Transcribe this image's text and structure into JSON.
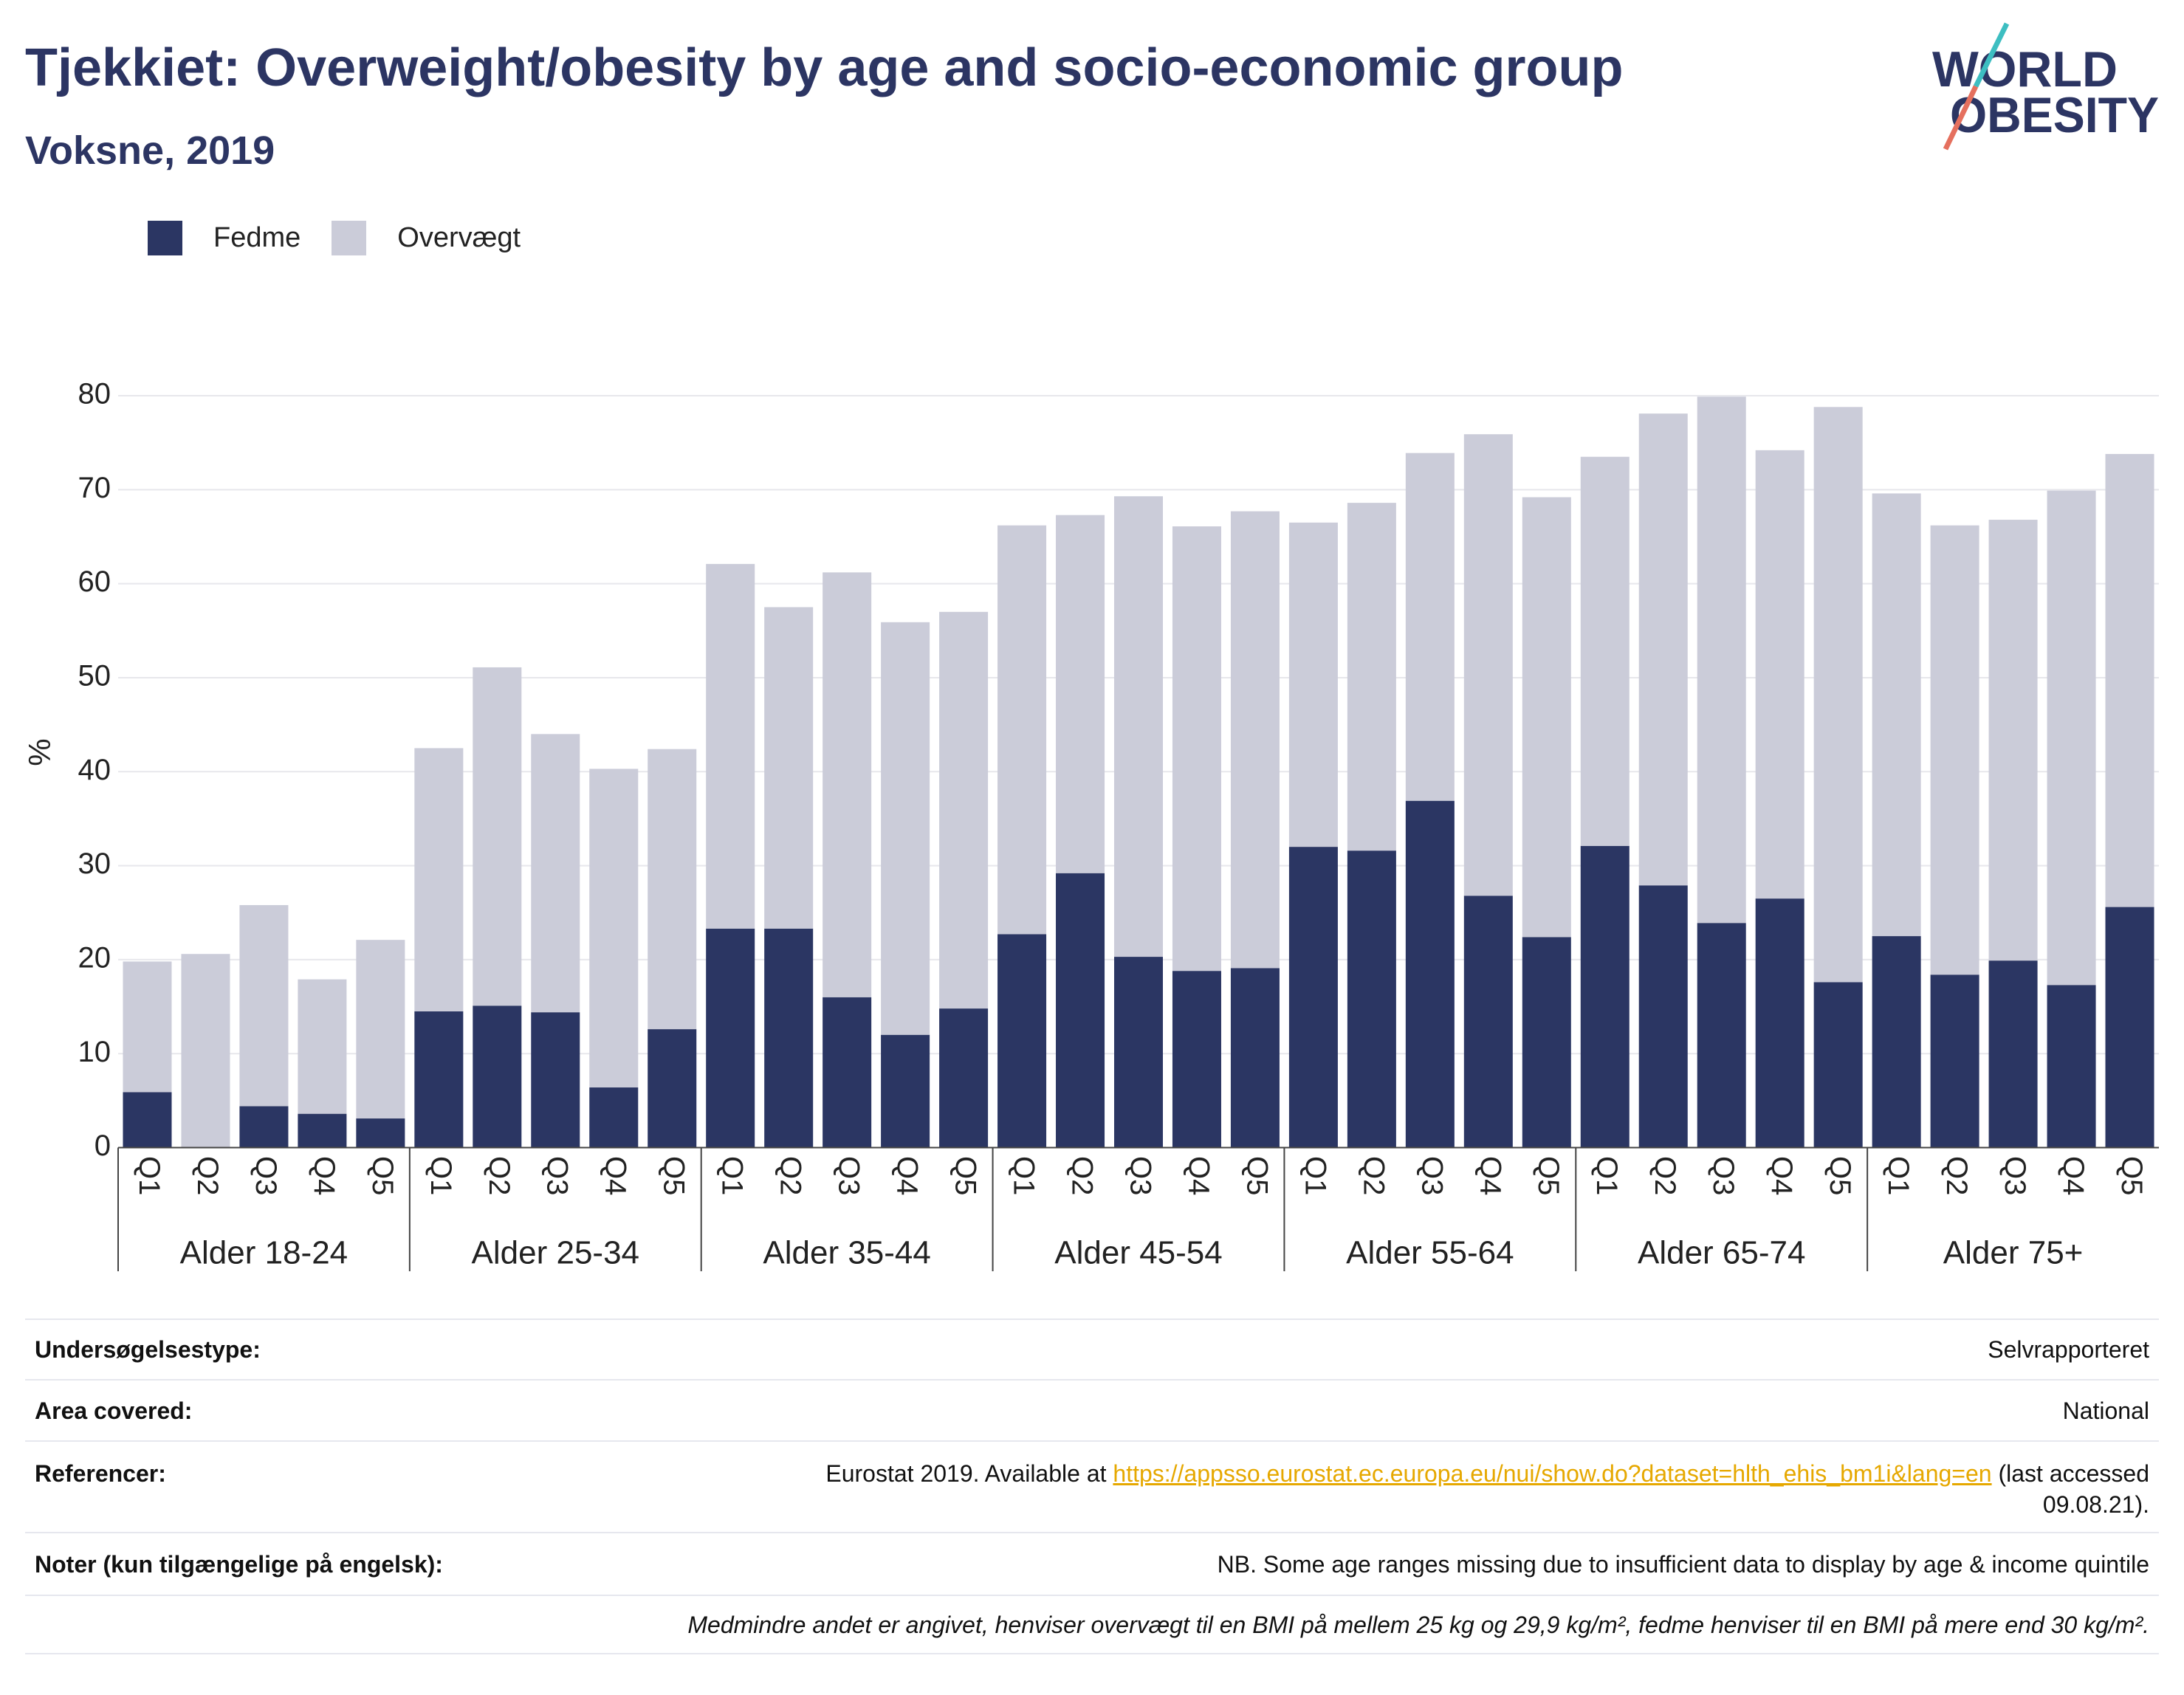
{
  "chart_data": {
    "type": "bar",
    "stacked": true,
    "title": "Tjekkiet: Overweight/obesity by age and socio-economic group",
    "subtitle": "Voksne, 2019",
    "xlabel": "",
    "ylabel": "%",
    "ylim": [
      0,
      80
    ],
    "yticks": [
      0,
      10,
      20,
      30,
      40,
      50,
      60,
      70,
      80
    ],
    "grid": true,
    "legend_position": "top-left",
    "groups": [
      "Alder 18-24",
      "Alder 25-34",
      "Alder 35-44",
      "Alder 45-54",
      "Alder 55-64",
      "Alder 65-74",
      "Alder 75+"
    ],
    "quintiles": [
      "Q1",
      "Q2",
      "Q3",
      "Q4",
      "Q5"
    ],
    "series": [
      {
        "name": "Fedme",
        "color": "#2b3663",
        "values": [
          5.9,
          0,
          4.4,
          3.6,
          3.1,
          14.5,
          15.1,
          14.4,
          6.4,
          12.6,
          23.3,
          23.3,
          16.0,
          12.0,
          14.8,
          22.7,
          29.2,
          20.3,
          18.8,
          19.1,
          32.0,
          31.6,
          36.9,
          26.8,
          22.4,
          32.1,
          27.9,
          23.9,
          26.5,
          17.6,
          22.5,
          18.4,
          19.9,
          17.3,
          25.6
        ]
      },
      {
        "name": "Overvægt",
        "color": "#cbccd9",
        "values": [
          13.9,
          20.6,
          21.4,
          14.3,
          19.0,
          28.0,
          36.0,
          29.6,
          33.9,
          29.8,
          38.8,
          34.2,
          45.2,
          43.9,
          42.2,
          43.5,
          38.1,
          49.0,
          47.3,
          48.6,
          34.5,
          37.0,
          37.0,
          49.1,
          46.8,
          41.4,
          50.2,
          56.0,
          47.7,
          61.2,
          47.1,
          47.8,
          46.9,
          52.6,
          48.2
        ]
      }
    ]
  },
  "logo": {
    "line1": "WORLD",
    "line2": "OBESITY",
    "text_color": "#2c3563",
    "stripe_top_color": "#3dbec1",
    "stripe_bottom_color": "#e5705e"
  },
  "info_table": {
    "rows": [
      {
        "label": "Undersøgelsestype:",
        "value": "Selvrapporteret"
      },
      {
        "label": "Area covered:",
        "value": "National"
      },
      {
        "label": "Referencer:",
        "value_prefix": "Eurostat 2019. Available at ",
        "link": "https://appsso.eurostat.ec.europa.eu/nui/show.do?dataset=hlth_ehis_bm1i&lang=en",
        "value_suffix": " (last accessed",
        "value_line2": "09.08.21)."
      },
      {
        "label": "Noter (kun tilgængelige på engelsk):",
        "value": "NB. Some age ranges missing due to insufficient data to display by age & income quintile"
      }
    ],
    "footnote": "Medmindre andet er angivet, henviser overvægt til en BMI på mellem 25 kg og 29,9 kg/m², fedme henviser til en BMI på mere end 30 kg/m²."
  }
}
